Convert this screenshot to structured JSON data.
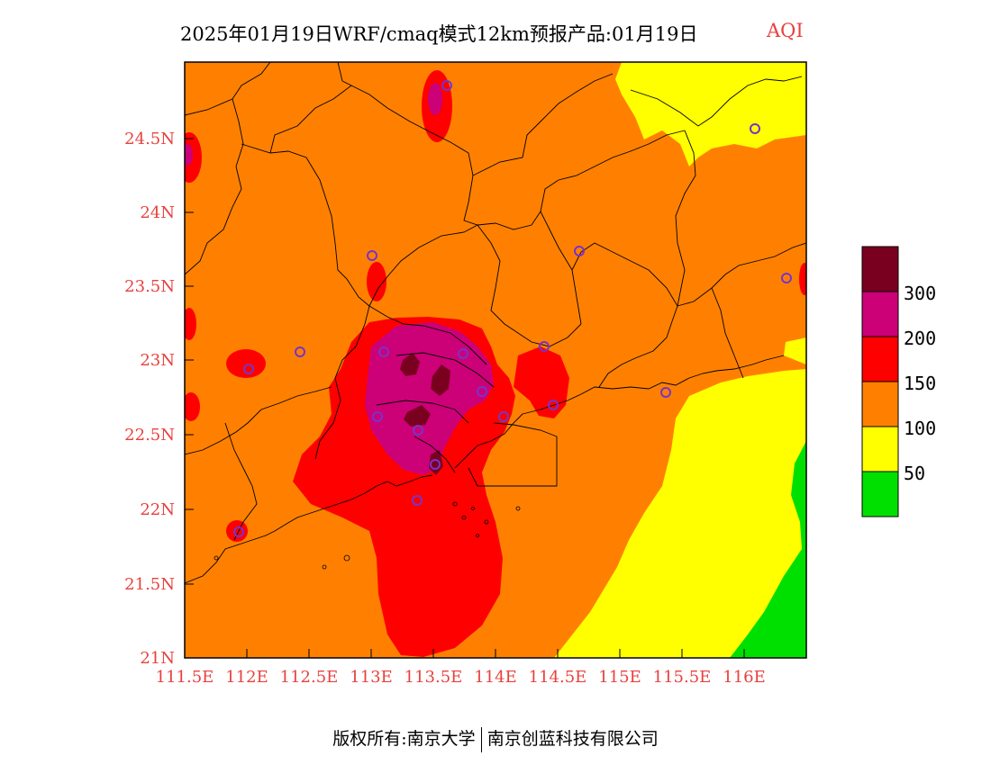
{
  "header": {
    "title": "2025年01月19日WRF/cmaq模式12km预报产品:01月19日",
    "product_tag": "AQI"
  },
  "map": {
    "lon_labels": [
      "111.5E",
      "112E",
      "112.5E",
      "113E",
      "113.5E",
      "114E",
      "114.5E",
      "115E",
      "115.5E",
      "116E"
    ],
    "lat_labels": [
      "24.5N",
      "24N",
      "23.5N",
      "23N",
      "22.5N",
      "22N",
      "21.5N",
      "21N"
    ],
    "colors": {
      "good": "#00e000",
      "moderate": "#ffff00",
      "usg": "#ff8000",
      "unhealthy": "#ff0000",
      "very_unhealthy": "#cc0077",
      "hazardous": "#7a0020",
      "station_marker": "#7733cc",
      "tick_label": "#e8413e"
    }
  },
  "legend": {
    "labels": [
      "300",
      "200",
      "150",
      "100",
      "50"
    ],
    "bins": [
      {
        "color": "#7a0020"
      },
      {
        "color": "#cc0077"
      },
      {
        "color": "#ff0000"
      },
      {
        "color": "#ff8000"
      },
      {
        "color": "#ffff00"
      },
      {
        "color": "#00e000"
      }
    ]
  },
  "footer": {
    "copyright": "版权所有:南京大学",
    "company": "南京创蓝科技有限公司"
  }
}
